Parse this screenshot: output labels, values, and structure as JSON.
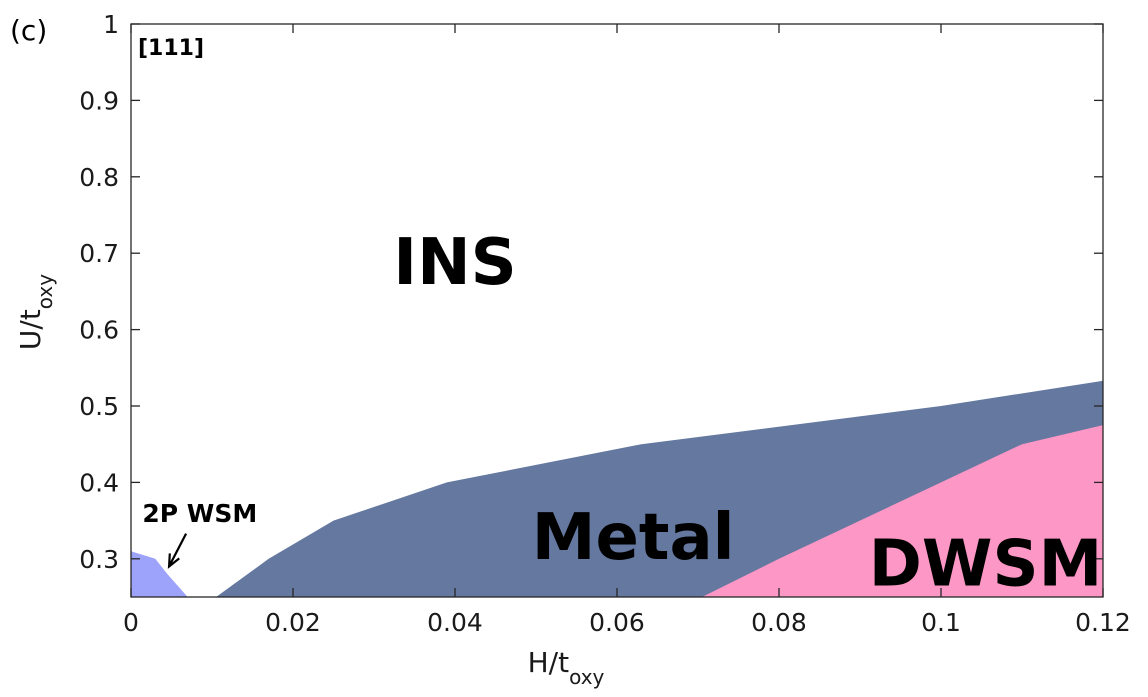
{
  "chart_data": {
    "type": "area",
    "panel_label": "(c)",
    "inset_label": "[111]",
    "xlabel_main": "H/t",
    "xlabel_sub": "oxy",
    "ylabel_main": "U/t",
    "ylabel_sub": "oxy",
    "xlim": [
      0,
      0.12
    ],
    "ylim": [
      0.25,
      1.0
    ],
    "xticks": [
      0,
      0.02,
      0.04,
      0.06,
      0.08,
      0.1,
      0.12
    ],
    "xtick_labels": [
      "0",
      "0.02",
      "0.04",
      "0.06",
      "0.08",
      "0.1",
      "0.12"
    ],
    "yticks": [
      0.3,
      0.4,
      0.5,
      0.6,
      0.7,
      0.8,
      0.9,
      1.0
    ],
    "ytick_labels": [
      "0.3",
      "0.4",
      "0.5",
      "0.6",
      "0.7",
      "0.8",
      "0.9",
      "1"
    ],
    "grid": false,
    "regions": [
      {
        "name": "Metal",
        "color": "#6478a0",
        "polygon": [
          [
            0.0105,
            0.25
          ],
          [
            0.017,
            0.3
          ],
          [
            0.025,
            0.35
          ],
          [
            0.039,
            0.4
          ],
          [
            0.063,
            0.45
          ],
          [
            0.1,
            0.5
          ],
          [
            0.12,
            0.533
          ],
          [
            0.12,
            0.25
          ]
        ]
      },
      {
        "name": "DWSM",
        "color": "#fd97c5",
        "polygon": [
          [
            0.0705,
            0.25
          ],
          [
            0.08,
            0.3
          ],
          [
            0.1,
            0.4
          ],
          [
            0.11,
            0.45
          ],
          [
            0.12,
            0.475
          ],
          [
            0.12,
            0.25
          ]
        ]
      },
      {
        "name": "2P WSM",
        "color": "#9da2fb",
        "polygon": [
          [
            0,
            0.25
          ],
          [
            0,
            0.31
          ],
          [
            0.003,
            0.3
          ],
          [
            0.0045,
            0.28
          ],
          [
            0.007,
            0.25
          ]
        ]
      }
    ],
    "labels": [
      {
        "text": "INS",
        "x": 0.04,
        "y": 0.69,
        "size": 64
      },
      {
        "text": "Metal",
        "x": 0.062,
        "y": 0.33,
        "size": 64
      },
      {
        "text": "DWSM",
        "x": 0.1055,
        "y": 0.295,
        "size": 64
      }
    ],
    "annotation": {
      "text": "2P WSM",
      "text_x": 0.0085,
      "text_y": 0.36,
      "arrow_from": [
        0.0068,
        0.333
      ],
      "arrow_to": [
        0.0047,
        0.29
      ]
    }
  }
}
